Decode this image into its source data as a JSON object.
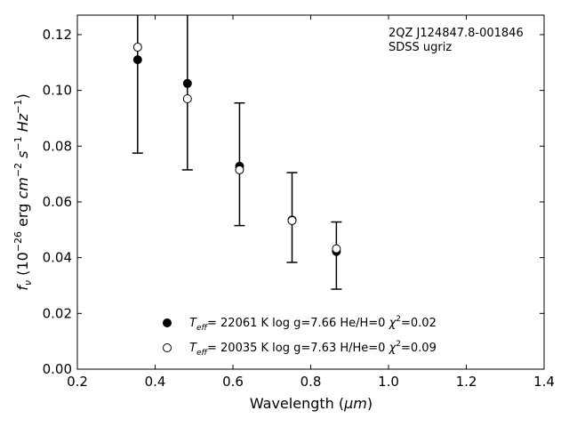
{
  "chart_data": {
    "type": "scatter",
    "xlabel_text": "Wavelength (",
    "xlabel_unit": "μm",
    "ylabel_f": "f",
    "ylabel_sub": "ν",
    "ylabel_rest": " (10",
    "ylabel_exp1": "−26",
    "ylabel_erg": " erg ",
    "ylabel_cm": "cm",
    "ylabel_exp2": "−2",
    "ylabel_s": " s",
    "ylabel_exp3": "−1",
    "ylabel_hz": " Hz",
    "ylabel_exp4": "−1",
    "xlim": [
      0.2,
      1.4
    ],
    "ylim": [
      0.0,
      0.127
    ],
    "xticks": [
      0.2,
      0.4,
      0.6,
      0.8,
      1.0,
      1.2,
      1.4
    ],
    "xtick_labels": [
      "0.2",
      "0.4",
      "0.6",
      "0.8",
      "1.0",
      "1.2",
      "1.4"
    ],
    "yticks": [
      0.0,
      0.02,
      0.04,
      0.06,
      0.08,
      0.1,
      0.12
    ],
    "ytick_labels": [
      "0.00",
      "0.02",
      "0.04",
      "0.06",
      "0.08",
      "0.10",
      "0.12"
    ],
    "annotation": [
      "2QZ J124847.8-001846",
      "SDSS ugriz"
    ],
    "observed": {
      "x": [
        0.355,
        0.483,
        0.617,
        0.752,
        0.866
      ],
      "y": [
        0.111,
        0.1025,
        0.0728,
        0.0535,
        0.0422
      ],
      "err_low": [
        0.0775,
        0.0715,
        0.0515,
        0.0383,
        0.0287
      ],
      "err_high": [
        0.127,
        0.127,
        0.0955,
        0.0705,
        0.0528
      ]
    },
    "series": [
      {
        "marker": "filled",
        "label": {
          "t": "T",
          "sub": "eff",
          "rest": "= 22061 K  log g=7.66  He/H=0  ",
          "chi": "χ",
          "sup": "2",
          "val": "=0.02"
        },
        "y": [
          0.111,
          0.1025,
          0.0728,
          0.0535,
          0.0422
        ]
      },
      {
        "marker": "open",
        "label": {
          "t": "T",
          "sub": "eff",
          "rest": "= 20035 K  log g=7.63  H/He=0  ",
          "chi": "χ",
          "sup": "2",
          "val": "=0.09"
        },
        "y": [
          0.1155,
          0.097,
          0.0715,
          0.0533,
          0.0432
        ]
      }
    ]
  }
}
